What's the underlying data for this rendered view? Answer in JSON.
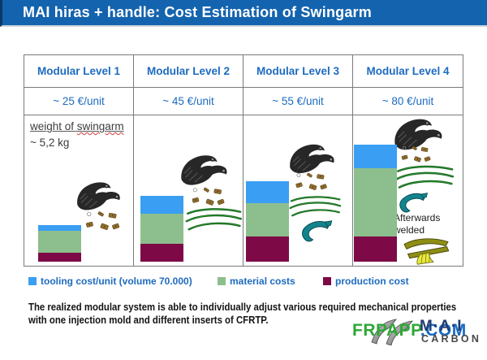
{
  "title": "MAI hiras + handle: Cost Estimation of Swingarm",
  "table": {
    "columns": [
      {
        "level": "Modular Level 1",
        "price": "~ 25 €/unit"
      },
      {
        "level": "Modular Level 2",
        "price": "~ 45 €/unit"
      },
      {
        "level": "Modular Level 3",
        "price": "~ 55 €/unit"
      },
      {
        "level": "Modular Level 4",
        "price": "~ 80 €/unit"
      }
    ]
  },
  "weight_note": {
    "prefix": "weight of ",
    "word": "swingarm",
    "line2": "~  5,2 kg"
  },
  "annotation": {
    "line1": "Afterwards",
    "line2": "welded"
  },
  "legend": {
    "items": [
      {
        "key": "tooling",
        "label": "tooling cost/unit (volume 70.000)",
        "color": "#3A9FF2"
      },
      {
        "key": "material",
        "label": "material costs",
        "color": "#8DBE8D"
      },
      {
        "key": "production",
        "label": "production cost",
        "color": "#7D0A46"
      }
    ]
  },
  "footer_note": {
    "line1": "The realized modular system is able to individually adjust various required mechanical properties",
    "line2": "with one injection mold and different inserts of CFRTP."
  },
  "watermark": {
    "green_part": "FRPAPP",
    "blue_part": ".COM",
    "green_color": "#2EA836",
    "blue_color": "#1769C5"
  },
  "logo": {
    "name": "M·A·I",
    "sub": "CARBON"
  },
  "colors": {
    "header_bg": "#1463AE",
    "accent_text": "#1E6BBF",
    "table_border": "#7a7a7a"
  },
  "chart_data": {
    "type": "bar",
    "stacked": true,
    "title": "Cost Estimation of Swingarm",
    "categories": [
      "Modular Level 1",
      "Modular Level 2",
      "Modular Level 3",
      "Modular Level 4"
    ],
    "unit_total_labels": [
      "~ 25 €/unit",
      "~ 45 €/unit",
      "~ 55 €/unit",
      "~ 80 €/unit"
    ],
    "unit_totals_eur": [
      25,
      45,
      55,
      80
    ],
    "value_unit": "€/unit",
    "legend_position": "bottom",
    "series": [
      {
        "key": "tooling",
        "name": "tooling cost/unit (volume 70.000)",
        "color": "#3A9FF2",
        "values": [
          4,
          12,
          15,
          16
        ]
      },
      {
        "key": "material",
        "name": "material costs",
        "color": "#8DBE8D",
        "values": [
          15,
          21,
          23,
          47
        ]
      },
      {
        "key": "production",
        "name": "production cost",
        "color": "#7D0A46",
        "values": [
          6,
          12,
          17,
          17
        ]
      }
    ]
  }
}
